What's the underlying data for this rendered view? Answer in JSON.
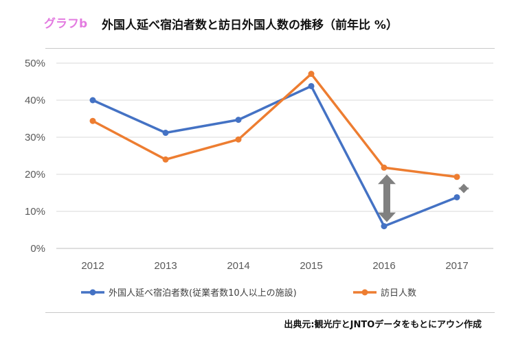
{
  "header": {
    "tag": "グラフb",
    "title": "外国人延べ宿泊者数と訪日外国人数の推移（前年比 %）"
  },
  "source": "出典元:観光庁とJNTOデータをもとにアウン作成",
  "colors": {
    "series_blue": "#4472c4",
    "series_orange": "#ed7d31",
    "arrow_gray": "#808080",
    "grid": "#d9d9d9"
  },
  "chart_data": {
    "type": "line",
    "x": [
      "2012",
      "2013",
      "2014",
      "2015",
      "2016",
      "2017"
    ],
    "ylim": [
      0,
      50
    ],
    "yticks": [
      "0%",
      "10%",
      "20%",
      "30%",
      "40%",
      "50%"
    ],
    "grid": "horizontal",
    "legend_position": "bottom",
    "series": [
      {
        "name": "外国人延べ宿泊者数(従業者数10人以上の施設)",
        "color": "#4472c4",
        "values": [
          40.0,
          31.2,
          34.7,
          43.8,
          6.0,
          13.8
        ]
      },
      {
        "name": "訪日人数",
        "color": "#ed7d31",
        "values": [
          34.4,
          24.0,
          29.4,
          47.1,
          21.8,
          19.3
        ]
      }
    ],
    "annotations": [
      {
        "type": "double-arrow",
        "x": "2016",
        "from": 6.0,
        "to": 21.8
      },
      {
        "type": "double-arrow",
        "x": "2017",
        "from": 13.8,
        "to": 19.3
      }
    ]
  }
}
